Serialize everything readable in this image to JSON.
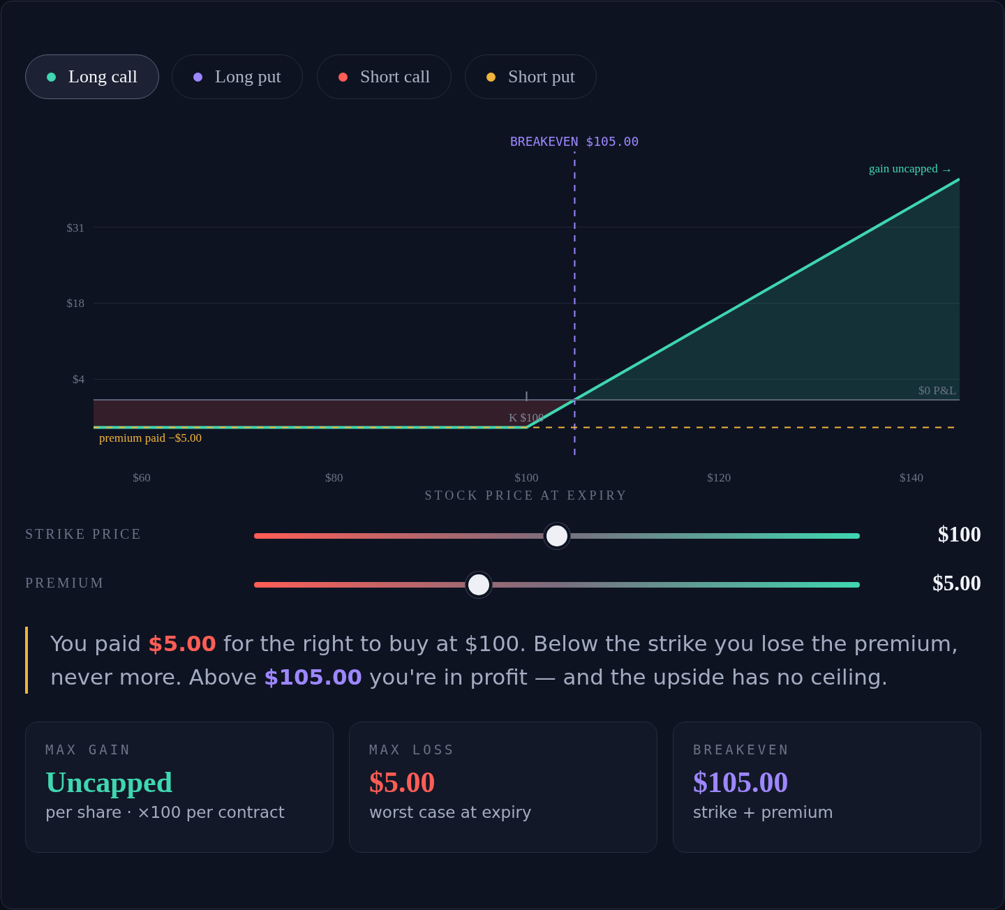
{
  "chart_data": [
    {
      "type": "other",
      "annotations": [
        "Long call",
        "Long put",
        "Short call",
        "Short put"
      ],
      "colors": [
        "#3fd6b0",
        "#9d87ff",
        "#ff5d55",
        "#f0b43c"
      ]
    },
    {
      "type": "line",
      "xlabel": "STOCK PRICE AT EXPIRY",
      "xlim": [
        55,
        145
      ],
      "ylim": [
        -10,
        45
      ],
      "xticks": [
        {
          "value": 60,
          "label": "$60"
        },
        {
          "value": 80,
          "label": "$80"
        },
        {
          "value": 100,
          "label": "$100"
        },
        {
          "value": 120,
          "label": "$120"
        },
        {
          "value": 140,
          "label": "$140"
        }
      ],
      "yticks": [
        {
          "value": 3.75,
          "label": "$4"
        },
        {
          "value": 17.5,
          "label": "$18"
        },
        {
          "value": 31.25,
          "label": "$31"
        }
      ],
      "grid": "y",
      "series": [
        {
          "type": "area",
          "color": "#ff5d55",
          "x": [
            55,
            100,
            105
          ],
          "values": [
            -5,
            -5,
            0
          ]
        },
        {
          "type": "area",
          "color": "#3fd6b0",
          "x": [
            105,
            145
          ],
          "values": [
            0,
            40
          ]
        },
        {
          "type": "line",
          "color": "#3fd6b0",
          "x": [
            55,
            100,
            145
          ],
          "values": [
            -5,
            -5,
            40
          ]
        }
      ],
      "ref_lines": [
        {
          "axis": "x",
          "value": 105,
          "label": "BREAKEVEN $105.00",
          "color": "#9d87ff",
          "line_style": "dashed"
        },
        {
          "axis": "y",
          "value": 0,
          "label": "$0 P&L",
          "color": "#5b6375",
          "line_style": "solid"
        },
        {
          "axis": "y",
          "value": -5,
          "label": "premium paid −$5.00",
          "color": "#f0b43c",
          "line_style": "dashed"
        }
      ],
      "annotations": [
        {
          "text": "K $100",
          "x": 100,
          "y": 0
        },
        {
          "text": "gain uncapped →",
          "x": 145,
          "y": 40
        }
      ]
    },
    {
      "type": "other",
      "annotations": [
        "STRIKE PRICE",
        "$100",
        "PREMIUM",
        "$5.00"
      ]
    },
    {
      "type": "other",
      "annotations": [
        "You paid ",
        "$5.00",
        " for the right to buy at $100. Below the strike you lose the premium, never more. Above ",
        "$105.00",
        " you're in profit — and the upside has no ceiling."
      ],
      "colors": [
        null,
        "#ff5d55",
        null,
        "#9d87ff",
        null
      ]
    },
    {
      "type": "other",
      "title": "MAX GAIN",
      "annotations": [
        "Uncapped",
        "per share · ×100 per contract"
      ],
      "color": "#3fd6b0"
    },
    {
      "type": "other",
      "title": "MAX LOSS",
      "annotations": [
        "$5.00",
        "worst case at expiry"
      ],
      "color": "#ff5d55"
    },
    {
      "type": "other",
      "title": "BREAKEVEN",
      "annotations": [
        "$105.00",
        "strike + premium"
      ],
      "color": "#9d87ff"
    }
  ]
}
